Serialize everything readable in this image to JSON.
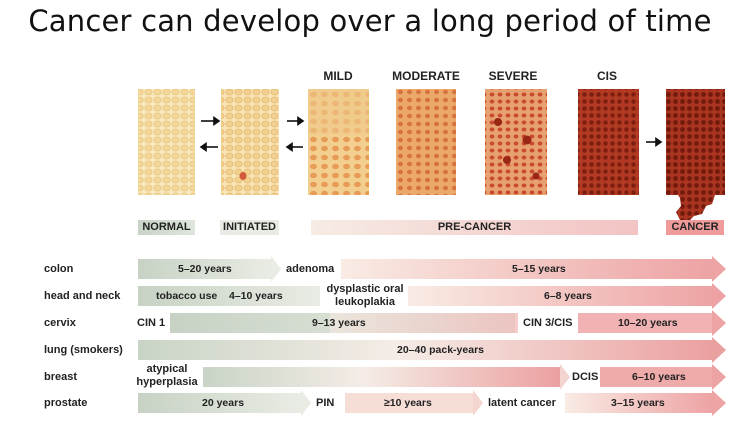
{
  "title": "Cancer can develop over a long period of time",
  "stages": {
    "mild": "MILD",
    "moderate": "MODERATE",
    "severe": "SEVERE",
    "cis": "CIS"
  },
  "bands": {
    "normal": "NORMAL",
    "initiated": "INITIATED",
    "pre_cancer": "PRE-CANCER",
    "cancer": "CANCER"
  },
  "rows": {
    "colon": {
      "label": "colon",
      "t1": "5–20 years",
      "m1": "adenoma",
      "t2": "5–15 years"
    },
    "head_neck": {
      "label": "head and neck",
      "pre": "tobacco use",
      "t1": "4–10 years",
      "m1": "dysplastic oral leukoplakia",
      "m1a": "dysplastic oral",
      "m1b": "leukoplakia",
      "t2": "6–8 years"
    },
    "cervix": {
      "label": "cervix",
      "m0": "CIN 1",
      "t1": "9–13 years",
      "m1": "CIN 3/CIS",
      "t2": "10–20 years"
    },
    "lung": {
      "label": "lung (smokers)",
      "t1": "20–40 pack-years"
    },
    "breast": {
      "label": "breast",
      "m0": "atypical hyperplasia",
      "m0a": "atypical",
      "m0b": "hyperplasia",
      "m1": "DCIS",
      "t2": "6–10 years"
    },
    "prostate": {
      "label": "prostate",
      "t1": "20 years",
      "m1": "PIN",
      "t2": "≥10 years",
      "m2": "latent cancer",
      "t3": "3–15 years"
    }
  },
  "colors": {
    "normal_tissue": "#f7e3b0",
    "mild_tissue": "#f1c783",
    "moderate_tissue": "#e8a060",
    "severe_tissue": "#e2915c",
    "cis_tissue": "#a3301c",
    "cancer_tissue": "#9a2a17",
    "arrow_green": "#c9d4c8",
    "arrow_pink": "#eba5a5"
  }
}
